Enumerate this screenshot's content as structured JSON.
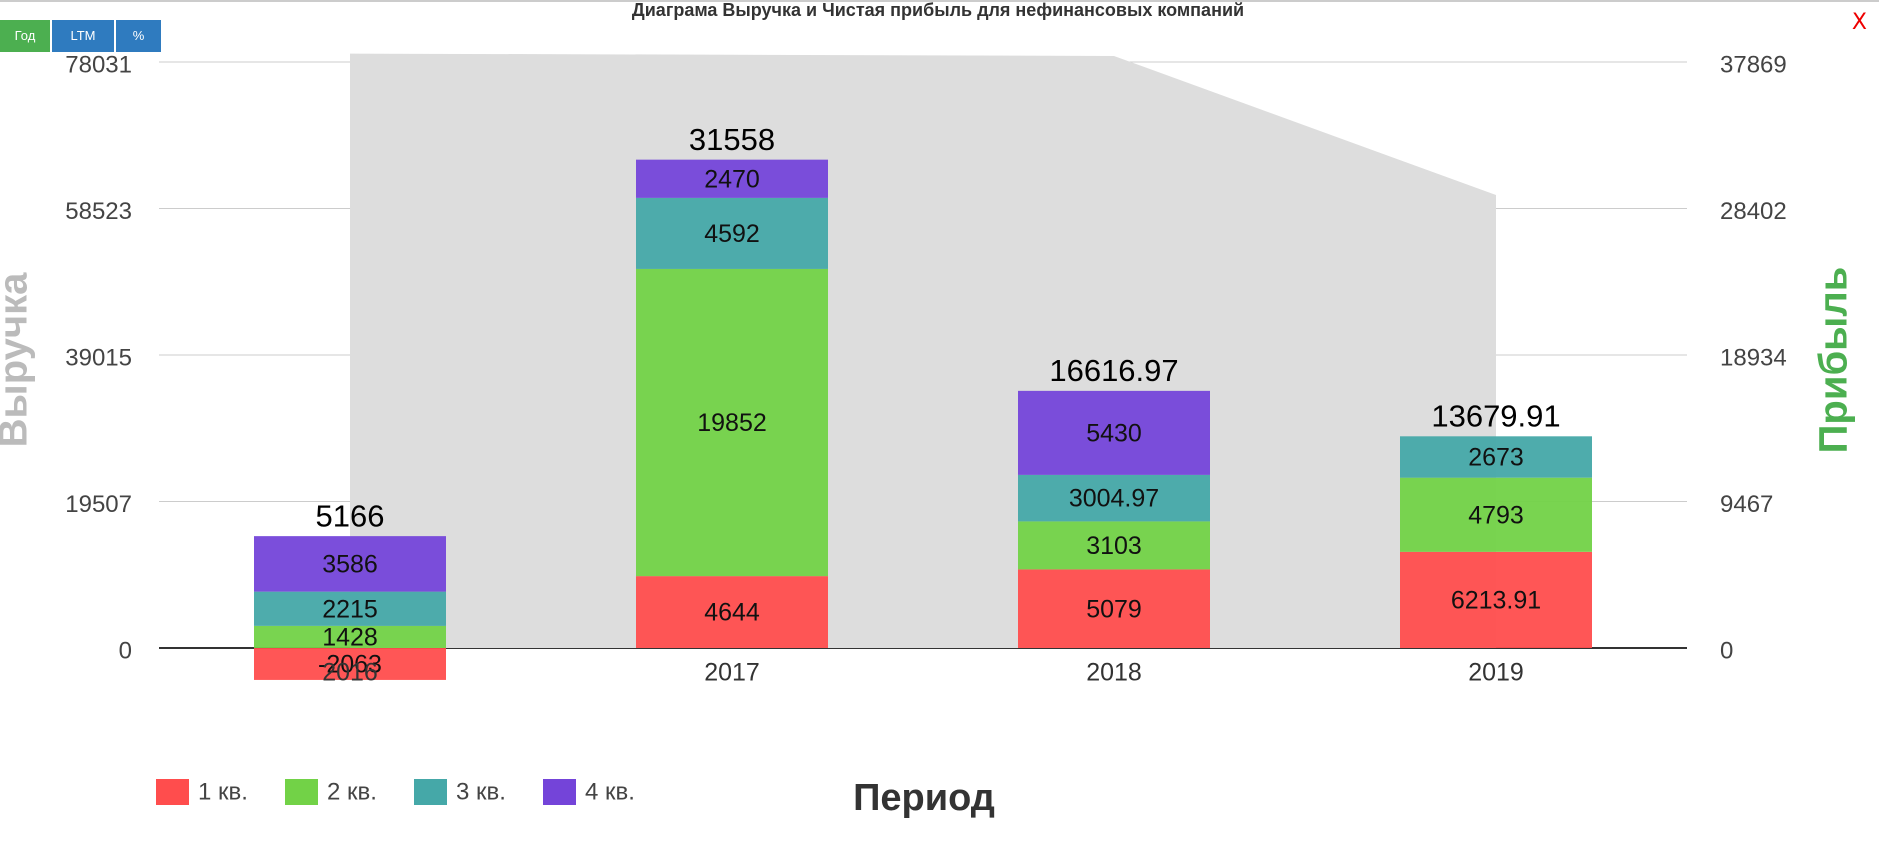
{
  "chart_data": {
    "type": "bar",
    "title": "Диаграма Выручка и Чистая прибыль для нефинансовых компаний",
    "buttons": [
      "Год",
      "LTM",
      "%"
    ],
    "close": "X",
    "categories": [
      "2016",
      "2017",
      "2018",
      "2019"
    ],
    "xlabel": "Период",
    "ylabel": "Выручка",
    "y2label": "Прибыль",
    "ylim": [
      0,
      78031
    ],
    "yticks": [
      0,
      19507,
      39015,
      58523,
      78031
    ],
    "y2lim": [
      0,
      37869
    ],
    "y2ticks": [
      0,
      9467,
      18934,
      28402,
      37869
    ],
    "grid": true,
    "area": {
      "type": "area",
      "color": "#dddddd",
      "values": [
        79150,
        79000,
        78830,
        60320
      ]
    },
    "series": [
      {
        "name": "1 кв.",
        "color": "#ff4d4d",
        "axis": "y2",
        "values": [
          -2063,
          4644,
          5079,
          6213.91
        ]
      },
      {
        "name": "2 кв.",
        "color": "#72d247",
        "axis": "y2",
        "values": [
          1428,
          19852,
          3103,
          4793
        ]
      },
      {
        "name": "3 кв.",
        "color": "#45a8a8",
        "axis": "y2",
        "values": [
          2215,
          4592,
          3004.97,
          2673
        ]
      },
      {
        "name": "4 кв.",
        "color": "#7444d9",
        "axis": "y2",
        "values": [
          3586,
          2470,
          5430,
          null
        ]
      }
    ],
    "totals": [
      5166,
      31558,
      16616.97,
      13679.91
    ],
    "legend": "bottom-left"
  }
}
